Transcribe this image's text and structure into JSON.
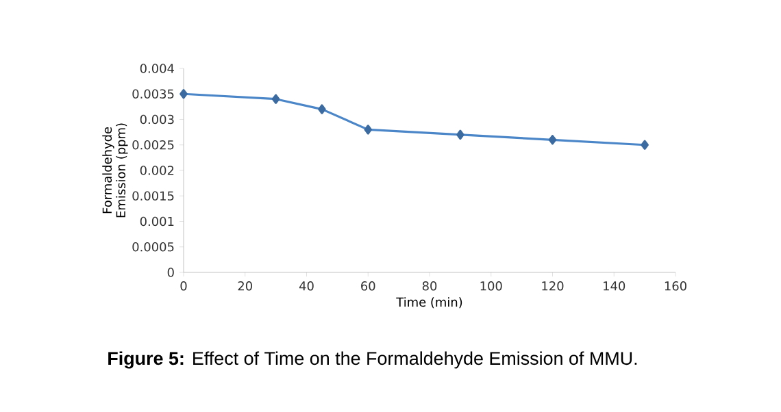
{
  "chart_data": {
    "type": "line",
    "xlabel": "Time (min)",
    "ylabel": "Formaldehyde Emission (ppm)",
    "x": [
      0,
      30,
      45,
      60,
      90,
      120,
      150
    ],
    "series": [
      {
        "color": "#4a86c8",
        "values": [
          0.0035,
          0.0034,
          0.0032,
          0.0028,
          0.0027,
          0.0026,
          0.0025
        ]
      }
    ],
    "xlim": [
      0,
      160
    ],
    "xticks": [
      0,
      20,
      40,
      60,
      80,
      100,
      120,
      140,
      160
    ],
    "ylim": [
      0,
      0.004
    ],
    "yticks": [
      0,
      0.0005,
      0.001,
      0.0015,
      0.002,
      0.0025,
      0.003,
      0.0035,
      0.004
    ],
    "grid": false,
    "marker": "diamond",
    "line_style": "solid",
    "annotations": [
      "**Figure 5:** Effect of Time on the Formaldehyde Emission of MMU."
    ]
  }
}
